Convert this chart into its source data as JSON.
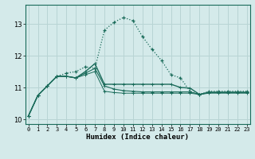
{
  "xlabel": "Humidex (Indice chaleur)",
  "bg_color": "#d4eaea",
  "grid_color": "#b8d4d4",
  "line_color": "#1a6b5a",
  "x_data": [
    0,
    1,
    2,
    3,
    4,
    5,
    6,
    7,
    8,
    9,
    10,
    11,
    12,
    13,
    14,
    15,
    16,
    17,
    18,
    19,
    20,
    21,
    22,
    23
  ],
  "series": [
    [
      10.1,
      10.75,
      11.05,
      11.35,
      11.45,
      11.5,
      11.65,
      11.6,
      12.8,
      13.05,
      13.2,
      13.1,
      12.6,
      12.2,
      11.85,
      11.4,
      11.3,
      10.88,
      10.78,
      10.88,
      10.88,
      10.88,
      10.88,
      10.88
    ],
    [
      10.1,
      10.75,
      11.05,
      11.35,
      11.35,
      11.3,
      11.5,
      11.75,
      11.1,
      11.1,
      11.1,
      11.1,
      11.1,
      11.1,
      11.1,
      11.1,
      11.0,
      10.98,
      10.78,
      10.85,
      10.85,
      10.85,
      10.85,
      10.85
    ],
    [
      10.1,
      10.75,
      11.05,
      11.35,
      11.35,
      11.3,
      11.45,
      11.6,
      11.05,
      10.95,
      10.9,
      10.88,
      10.86,
      10.86,
      10.86,
      10.86,
      10.86,
      10.86,
      10.78,
      10.84,
      10.84,
      10.84,
      10.84,
      10.84
    ],
    [
      10.1,
      10.75,
      11.05,
      11.35,
      11.35,
      11.3,
      11.4,
      11.5,
      10.88,
      10.84,
      10.82,
      10.82,
      10.82,
      10.82,
      10.82,
      10.82,
      10.82,
      10.82,
      10.78,
      10.82,
      10.82,
      10.82,
      10.82,
      10.82
    ]
  ],
  "ylim": [
    9.85,
    13.6
  ],
  "yticks": [
    10,
    11,
    12,
    13
  ],
  "xticks": [
    0,
    1,
    2,
    3,
    4,
    5,
    6,
    7,
    8,
    9,
    10,
    11,
    12,
    13,
    14,
    15,
    16,
    17,
    18,
    19,
    20,
    21,
    22,
    23
  ]
}
